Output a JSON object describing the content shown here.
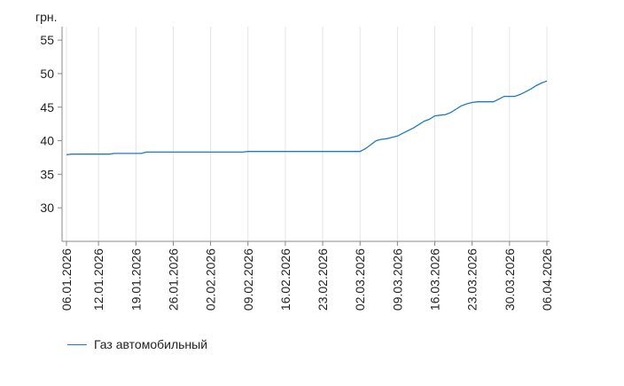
{
  "chart_data": {
    "type": "line",
    "ylabel": "грн.",
    "ylim": [
      25,
      57
    ],
    "yticks": [
      30,
      35,
      40,
      45,
      50,
      55
    ],
    "xlim": [
      "2026-01-06",
      "2026-04-06"
    ],
    "xticks": [
      "06.01.2026",
      "12.01.2026",
      "19.01.2026",
      "26.01.2026",
      "02.02.2026",
      "09.02.2026",
      "16.02.2026",
      "23.02.2026",
      "02.03.2026",
      "09.03.2026",
      "16.03.2026",
      "23.03.2026",
      "30.03.2026",
      "06.04.2026"
    ],
    "grid": "vertical",
    "legend": "bottom-left",
    "series": [
      {
        "name": "Газ автомобильный",
        "color": "#1f7bc0",
        "x": [
          "2026-01-06",
          "2026-01-07",
          "2026-01-10",
          "2026-01-14",
          "2026-01-15",
          "2026-01-20",
          "2026-01-21",
          "2026-02-08",
          "2026-02-09",
          "2026-03-02",
          "2026-03-03",
          "2026-03-04",
          "2026-03-05",
          "2026-03-06",
          "2026-03-07",
          "2026-03-08",
          "2026-03-09",
          "2026-03-10",
          "2026-03-11",
          "2026-03-12",
          "2026-03-13",
          "2026-03-14",
          "2026-03-15",
          "2026-03-16",
          "2026-03-17",
          "2026-03-18",
          "2026-03-19",
          "2026-03-20",
          "2026-03-21",
          "2026-03-22",
          "2026-03-23",
          "2026-03-24",
          "2026-03-25",
          "2026-03-26",
          "2026-03-27",
          "2026-03-28",
          "2026-03-29",
          "2026-03-30",
          "2026-03-31",
          "2026-04-01",
          "2026-04-02",
          "2026-04-03",
          "2026-04-04",
          "2026-04-05",
          "2026-04-06"
        ],
        "values": [
          37.9,
          38.0,
          38.0,
          38.0,
          38.1,
          38.1,
          38.3,
          38.3,
          38.4,
          38.4,
          38.8,
          39.4,
          40.0,
          40.2,
          40.3,
          40.5,
          40.7,
          41.1,
          41.5,
          41.9,
          42.4,
          42.9,
          43.2,
          43.7,
          43.8,
          43.9,
          44.2,
          44.7,
          45.2,
          45.5,
          45.7,
          45.8,
          45.8,
          45.8,
          45.8,
          46.2,
          46.6,
          46.6,
          46.6,
          46.9,
          47.3,
          47.7,
          48.2,
          48.6,
          48.9
        ]
      }
    ]
  }
}
